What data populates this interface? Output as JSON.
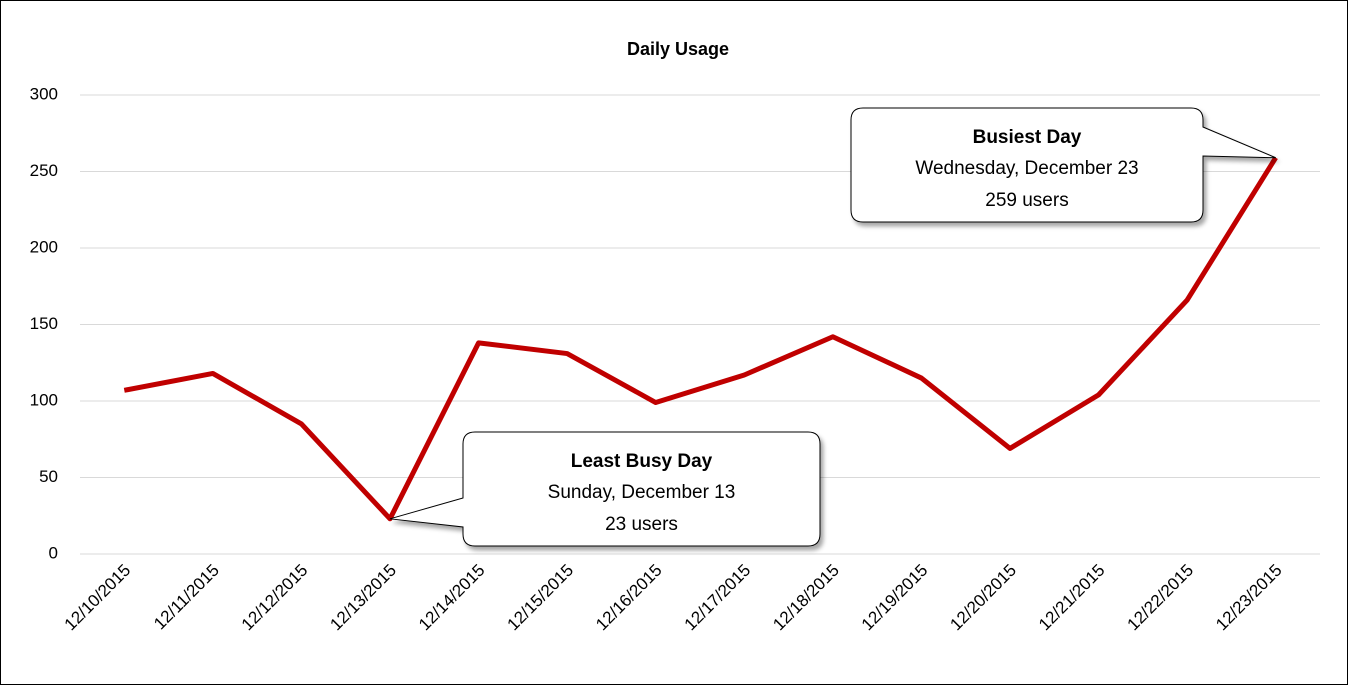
{
  "chart_data": {
    "type": "line",
    "title": "Daily Usage",
    "categories": [
      "12/10/2015",
      "12/11/2015",
      "12/12/2015",
      "12/13/2015",
      "12/14/2015",
      "12/15/2015",
      "12/16/2015",
      "12/17/2015",
      "12/18/2015",
      "12/19/2015",
      "12/20/2015",
      "12/21/2015",
      "12/22/2015",
      "12/23/2015"
    ],
    "series": [
      {
        "name": "Users",
        "color": "#c00000",
        "values": [
          107,
          118,
          85,
          23,
          138,
          131,
          99,
          117,
          142,
          115,
          69,
          104,
          166,
          259
        ]
      }
    ],
    "ylim": [
      0,
      300
    ],
    "yticks": [
      0,
      50,
      100,
      150,
      200,
      250,
      300
    ],
    "grid": true,
    "annotations": [
      {
        "title": "Least Busy Day",
        "lines": [
          "Sunday, December 13",
          "23 users"
        ]
      },
      {
        "title": "Busiest Day",
        "lines": [
          "Wednesday, December 23",
          "259 users"
        ]
      }
    ]
  }
}
